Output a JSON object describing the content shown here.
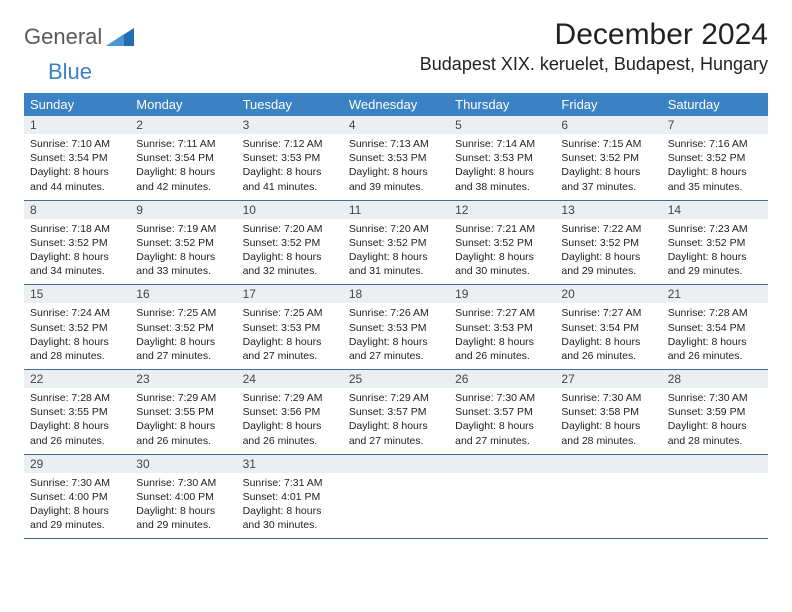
{
  "logo": {
    "text1": "General",
    "text2": "Blue"
  },
  "title": "December 2024",
  "location": "Budapest XIX. keruelet, Budapest, Hungary",
  "colors": {
    "header_bg": "#3b82c4",
    "header_text": "#ffffff",
    "daynum_bg": "#eceff1",
    "daynum_text": "#444444",
    "body_text": "#222222",
    "row_border": "#3b6fa0",
    "logo_gray": "#5a5a5a",
    "logo_blue": "#3b82c4",
    "page_bg": "#ffffff"
  },
  "typography": {
    "title_fontsize": 30,
    "location_fontsize": 18,
    "dow_fontsize": 13,
    "daynum_fontsize": 12,
    "body_fontsize": 10.5,
    "logo_fontsize": 22
  },
  "layout": {
    "columns": 7,
    "rows": 5
  },
  "dow": [
    "Sunday",
    "Monday",
    "Tuesday",
    "Wednesday",
    "Thursday",
    "Friday",
    "Saturday"
  ],
  "weeks": [
    [
      {
        "n": "1",
        "sunrise": "Sunrise: 7:10 AM",
        "sunset": "Sunset: 3:54 PM",
        "day1": "Daylight: 8 hours",
        "day2": "and 44 minutes."
      },
      {
        "n": "2",
        "sunrise": "Sunrise: 7:11 AM",
        "sunset": "Sunset: 3:54 PM",
        "day1": "Daylight: 8 hours",
        "day2": "and 42 minutes."
      },
      {
        "n": "3",
        "sunrise": "Sunrise: 7:12 AM",
        "sunset": "Sunset: 3:53 PM",
        "day1": "Daylight: 8 hours",
        "day2": "and 41 minutes."
      },
      {
        "n": "4",
        "sunrise": "Sunrise: 7:13 AM",
        "sunset": "Sunset: 3:53 PM",
        "day1": "Daylight: 8 hours",
        "day2": "and 39 minutes."
      },
      {
        "n": "5",
        "sunrise": "Sunrise: 7:14 AM",
        "sunset": "Sunset: 3:53 PM",
        "day1": "Daylight: 8 hours",
        "day2": "and 38 minutes."
      },
      {
        "n": "6",
        "sunrise": "Sunrise: 7:15 AM",
        "sunset": "Sunset: 3:52 PM",
        "day1": "Daylight: 8 hours",
        "day2": "and 37 minutes."
      },
      {
        "n": "7",
        "sunrise": "Sunrise: 7:16 AM",
        "sunset": "Sunset: 3:52 PM",
        "day1": "Daylight: 8 hours",
        "day2": "and 35 minutes."
      }
    ],
    [
      {
        "n": "8",
        "sunrise": "Sunrise: 7:18 AM",
        "sunset": "Sunset: 3:52 PM",
        "day1": "Daylight: 8 hours",
        "day2": "and 34 minutes."
      },
      {
        "n": "9",
        "sunrise": "Sunrise: 7:19 AM",
        "sunset": "Sunset: 3:52 PM",
        "day1": "Daylight: 8 hours",
        "day2": "and 33 minutes."
      },
      {
        "n": "10",
        "sunrise": "Sunrise: 7:20 AM",
        "sunset": "Sunset: 3:52 PM",
        "day1": "Daylight: 8 hours",
        "day2": "and 32 minutes."
      },
      {
        "n": "11",
        "sunrise": "Sunrise: 7:20 AM",
        "sunset": "Sunset: 3:52 PM",
        "day1": "Daylight: 8 hours",
        "day2": "and 31 minutes."
      },
      {
        "n": "12",
        "sunrise": "Sunrise: 7:21 AM",
        "sunset": "Sunset: 3:52 PM",
        "day1": "Daylight: 8 hours",
        "day2": "and 30 minutes."
      },
      {
        "n": "13",
        "sunrise": "Sunrise: 7:22 AM",
        "sunset": "Sunset: 3:52 PM",
        "day1": "Daylight: 8 hours",
        "day2": "and 29 minutes."
      },
      {
        "n": "14",
        "sunrise": "Sunrise: 7:23 AM",
        "sunset": "Sunset: 3:52 PM",
        "day1": "Daylight: 8 hours",
        "day2": "and 29 minutes."
      }
    ],
    [
      {
        "n": "15",
        "sunrise": "Sunrise: 7:24 AM",
        "sunset": "Sunset: 3:52 PM",
        "day1": "Daylight: 8 hours",
        "day2": "and 28 minutes."
      },
      {
        "n": "16",
        "sunrise": "Sunrise: 7:25 AM",
        "sunset": "Sunset: 3:52 PM",
        "day1": "Daylight: 8 hours",
        "day2": "and 27 minutes."
      },
      {
        "n": "17",
        "sunrise": "Sunrise: 7:25 AM",
        "sunset": "Sunset: 3:53 PM",
        "day1": "Daylight: 8 hours",
        "day2": "and 27 minutes."
      },
      {
        "n": "18",
        "sunrise": "Sunrise: 7:26 AM",
        "sunset": "Sunset: 3:53 PM",
        "day1": "Daylight: 8 hours",
        "day2": "and 27 minutes."
      },
      {
        "n": "19",
        "sunrise": "Sunrise: 7:27 AM",
        "sunset": "Sunset: 3:53 PM",
        "day1": "Daylight: 8 hours",
        "day2": "and 26 minutes."
      },
      {
        "n": "20",
        "sunrise": "Sunrise: 7:27 AM",
        "sunset": "Sunset: 3:54 PM",
        "day1": "Daylight: 8 hours",
        "day2": "and 26 minutes."
      },
      {
        "n": "21",
        "sunrise": "Sunrise: 7:28 AM",
        "sunset": "Sunset: 3:54 PM",
        "day1": "Daylight: 8 hours",
        "day2": "and 26 minutes."
      }
    ],
    [
      {
        "n": "22",
        "sunrise": "Sunrise: 7:28 AM",
        "sunset": "Sunset: 3:55 PM",
        "day1": "Daylight: 8 hours",
        "day2": "and 26 minutes."
      },
      {
        "n": "23",
        "sunrise": "Sunrise: 7:29 AM",
        "sunset": "Sunset: 3:55 PM",
        "day1": "Daylight: 8 hours",
        "day2": "and 26 minutes."
      },
      {
        "n": "24",
        "sunrise": "Sunrise: 7:29 AM",
        "sunset": "Sunset: 3:56 PM",
        "day1": "Daylight: 8 hours",
        "day2": "and 26 minutes."
      },
      {
        "n": "25",
        "sunrise": "Sunrise: 7:29 AM",
        "sunset": "Sunset: 3:57 PM",
        "day1": "Daylight: 8 hours",
        "day2": "and 27 minutes."
      },
      {
        "n": "26",
        "sunrise": "Sunrise: 7:30 AM",
        "sunset": "Sunset: 3:57 PM",
        "day1": "Daylight: 8 hours",
        "day2": "and 27 minutes."
      },
      {
        "n": "27",
        "sunrise": "Sunrise: 7:30 AM",
        "sunset": "Sunset: 3:58 PM",
        "day1": "Daylight: 8 hours",
        "day2": "and 28 minutes."
      },
      {
        "n": "28",
        "sunrise": "Sunrise: 7:30 AM",
        "sunset": "Sunset: 3:59 PM",
        "day1": "Daylight: 8 hours",
        "day2": "and 28 minutes."
      }
    ],
    [
      {
        "n": "29",
        "sunrise": "Sunrise: 7:30 AM",
        "sunset": "Sunset: 4:00 PM",
        "day1": "Daylight: 8 hours",
        "day2": "and 29 minutes."
      },
      {
        "n": "30",
        "sunrise": "Sunrise: 7:30 AM",
        "sunset": "Sunset: 4:00 PM",
        "day1": "Daylight: 8 hours",
        "day2": "and 29 minutes."
      },
      {
        "n": "31",
        "sunrise": "Sunrise: 7:31 AM",
        "sunset": "Sunset: 4:01 PM",
        "day1": "Daylight: 8 hours",
        "day2": "and 30 minutes."
      },
      {
        "empty": true
      },
      {
        "empty": true
      },
      {
        "empty": true
      },
      {
        "empty": true
      }
    ]
  ]
}
